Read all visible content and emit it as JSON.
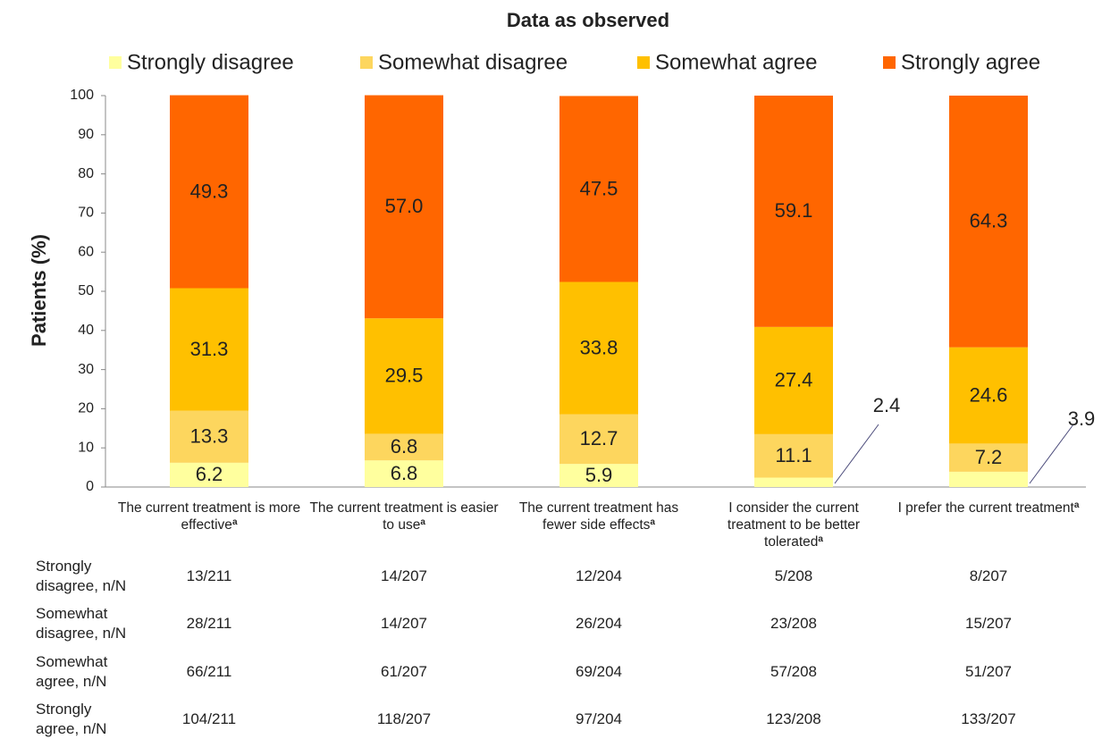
{
  "chart_data": {
    "type": "stacked_bar",
    "title": "Data as observed",
    "y_label": "Patients (%)",
    "categories": [
      "The current treatment is more effective",
      "The current treatment is easier to use",
      "The current treatment has fewer side effects",
      "I consider the current treatment to be better tolerated",
      "I prefer the current treatment"
    ],
    "category_superscripts": [
      "a",
      "a",
      "a",
      "a",
      "a"
    ],
    "series": [
      {
        "name": "Strongly disagree",
        "color": "#ffff9e",
        "values": [
          6.2,
          6.8,
          5.9,
          2.4,
          3.9
        ]
      },
      {
        "name": "Somewhat disagree",
        "color": "#fdd65e",
        "values": [
          13.3,
          6.8,
          12.7,
          11.1,
          7.2
        ]
      },
      {
        "name": "Somewhat agree",
        "color": "#ffc000",
        "values": [
          31.3,
          29.5,
          33.8,
          27.4,
          24.6
        ]
      },
      {
        "name": "Strongly agree",
        "color": "#ff6600",
        "values": [
          49.3,
          57.0,
          47.5,
          59.1,
          64.3
        ],
        "value_labels": [
          "49.3",
          "57.0",
          "47.5",
          "59.1",
          "64.3"
        ]
      }
    ],
    "ylim": [
      0,
      100
    ],
    "yticks": [
      0,
      10,
      20,
      30,
      40,
      50,
      60,
      70,
      80,
      90,
      100
    ],
    "grid": false,
    "legend": "top"
  },
  "table": {
    "rows": [
      {
        "label": "Strongly disagree, n/N",
        "cells": [
          "13/211",
          "14/207",
          "12/204",
          "5/208",
          "8/207"
        ]
      },
      {
        "label": "Somewhat disagree, n/N",
        "cells": [
          "28/211",
          "14/207",
          "26/204",
          "23/208",
          "15/207"
        ]
      },
      {
        "label": "Somewhat agree, n/N",
        "cells": [
          "66/211",
          "61/207",
          "69/204",
          "57/208",
          "51/207"
        ]
      },
      {
        "label": "Strongly agree, n/N",
        "cells": [
          "104/211",
          "118/207",
          "97/204",
          "123/208",
          "133/207"
        ]
      }
    ]
  }
}
